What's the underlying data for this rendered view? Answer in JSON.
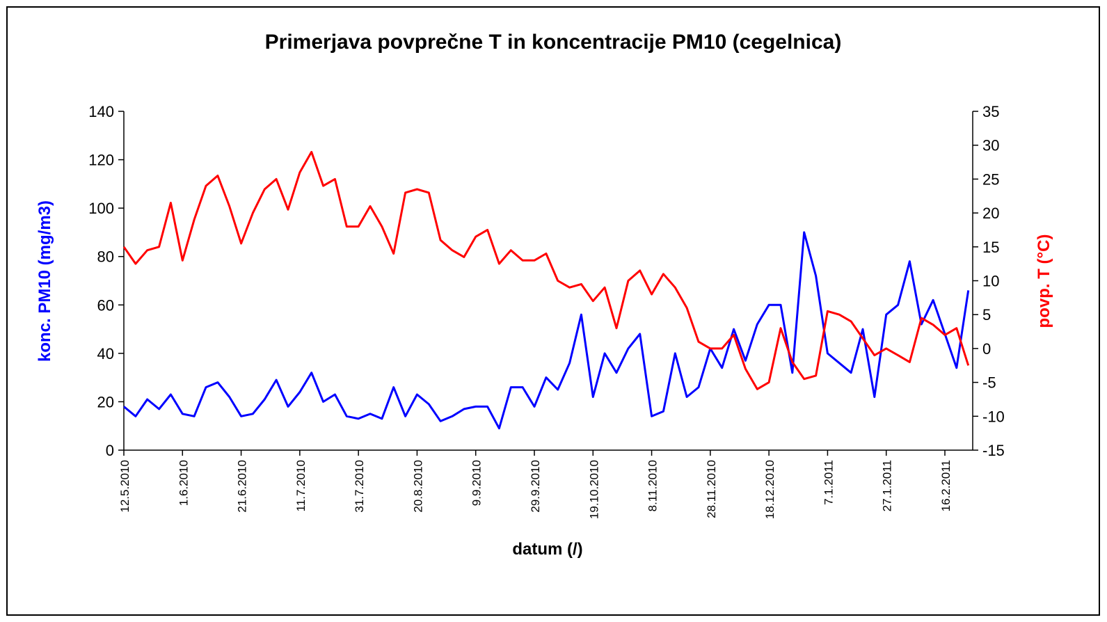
{
  "chart_data": {
    "type": "line",
    "title": "Primerjava  povprečne T in koncentracije PM10 (cegelnica)",
    "x_label": "datum (/)",
    "y_label": "konc. PM10 (mg/m3)",
    "y2_label": "povp. T (°C)",
    "categories": [
      "12.5.2010",
      null,
      null,
      null,
      null,
      "1.6.2010",
      null,
      null,
      null,
      null,
      "21.6.2010",
      null,
      null,
      null,
      null,
      "11.7.2010",
      null,
      null,
      null,
      null,
      "31.7.2010",
      null,
      null,
      null,
      null,
      "20.8.2010",
      null,
      null,
      null,
      null,
      "9.9.2010",
      null,
      null,
      null,
      null,
      "29.9.2010",
      null,
      null,
      null,
      null,
      "19.10.2010",
      null,
      null,
      null,
      null,
      "8.11.2010",
      null,
      null,
      null,
      null,
      "28.11.2010",
      null,
      null,
      null,
      null,
      "18.12.2010",
      null,
      null,
      null,
      null,
      "7.1.2011",
      null,
      null,
      null,
      null,
      "27.1.2011",
      null,
      null,
      null,
      null,
      "16.2.2011",
      null,
      null
    ],
    "series": [
      {
        "name": "konc. PM10",
        "color": "#0000ff",
        "axis": "y",
        "values": [
          18,
          14,
          21,
          17,
          23,
          15,
          14,
          26,
          28,
          22,
          14,
          15,
          21,
          29,
          18,
          24,
          32,
          20,
          23,
          14,
          13,
          15,
          13,
          26,
          14,
          23,
          19,
          12,
          14,
          17,
          18,
          18,
          9,
          26,
          26,
          18,
          30,
          25,
          36,
          56,
          22,
          40,
          32,
          42,
          48,
          14,
          16,
          40,
          22,
          26,
          42,
          34,
          50,
          37,
          52,
          60,
          60,
          32,
          90,
          72,
          40,
          36,
          32,
          50,
          22,
          56,
          60,
          78,
          52,
          62,
          48,
          34,
          66
        ]
      },
      {
        "name": "povp. T",
        "color": "#ff0000",
        "axis": "y2",
        "values": [
          15,
          12.5,
          14.5,
          15,
          21.5,
          13,
          19,
          24,
          25.5,
          21,
          15.5,
          20,
          23.5,
          25,
          20.5,
          26,
          29,
          24,
          25,
          18,
          18,
          21,
          18,
          14,
          23,
          23.5,
          23,
          16,
          14.5,
          13.5,
          16.5,
          17.5,
          12.5,
          14.5,
          13,
          13,
          14,
          10,
          9,
          9.5,
          7,
          9,
          3,
          10,
          11.5,
          8,
          11,
          9,
          6,
          1,
          0,
          0,
          2,
          -3,
          -6,
          -5,
          3,
          -2,
          -4.5,
          -4,
          5.5,
          5,
          4,
          1.5,
          -1,
          0,
          -1,
          -2,
          4.5,
          3.5,
          2,
          3,
          -2.5
        ]
      }
    ],
    "ylim": [
      0,
      140
    ],
    "yticks": [
      0,
      20,
      40,
      60,
      80,
      100,
      120,
      140
    ],
    "y2lim": [
      -15,
      35
    ],
    "y2ticks": [
      -15,
      -10,
      -5,
      0,
      5,
      10,
      15,
      20,
      25,
      30,
      35
    ]
  }
}
